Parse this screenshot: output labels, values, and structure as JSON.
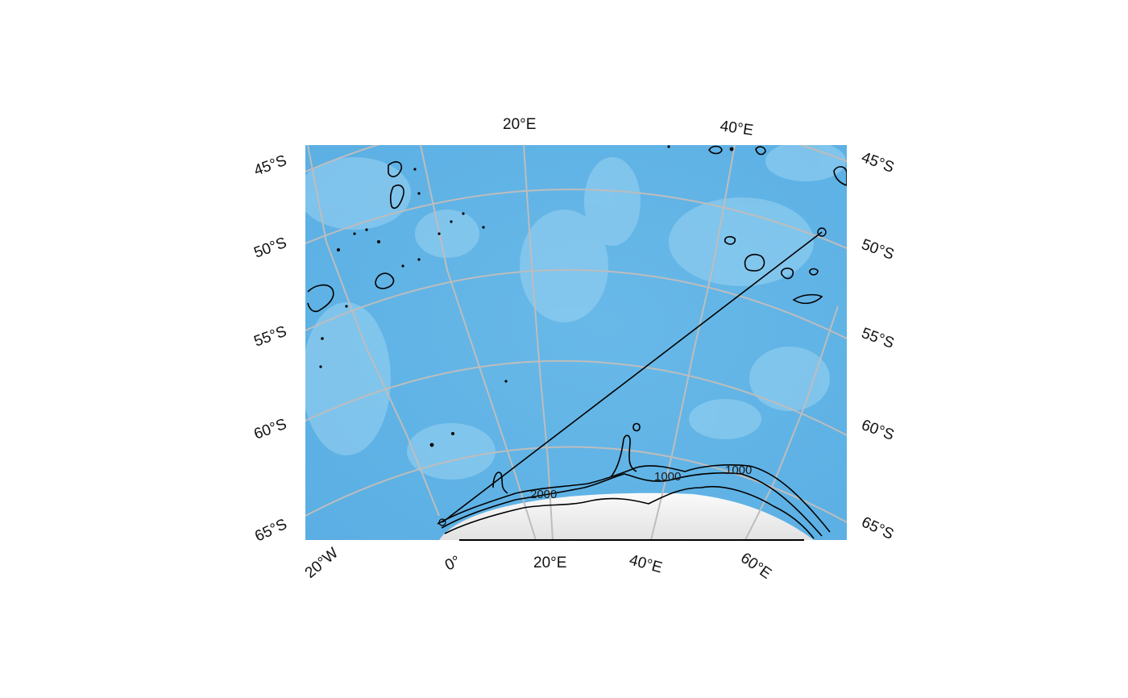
{
  "map": {
    "colors": {
      "ocean": "#5fb4e6",
      "ocean_light": "#8fcdef",
      "ice": "#efefef",
      "graticule": "#bdbdbd",
      "contour": "#000000"
    },
    "labels": {
      "top": [
        "20°E",
        "40°E"
      ],
      "bottom": [
        "20°W",
        "0°",
        "20°E",
        "40°E",
        "60°E"
      ],
      "left": [
        "45°S",
        "50°S",
        "55°S",
        "60°S",
        "65°S"
      ],
      "right": [
        "45°S",
        "50°S",
        "55°S",
        "60°S",
        "65°S"
      ]
    },
    "contour_labels": [
      "2000",
      "1000",
      "1000"
    ],
    "track": {
      "start": {
        "lon": 0,
        "lat": -65
      },
      "end": {
        "lon": 55,
        "lat": -49
      }
    }
  }
}
